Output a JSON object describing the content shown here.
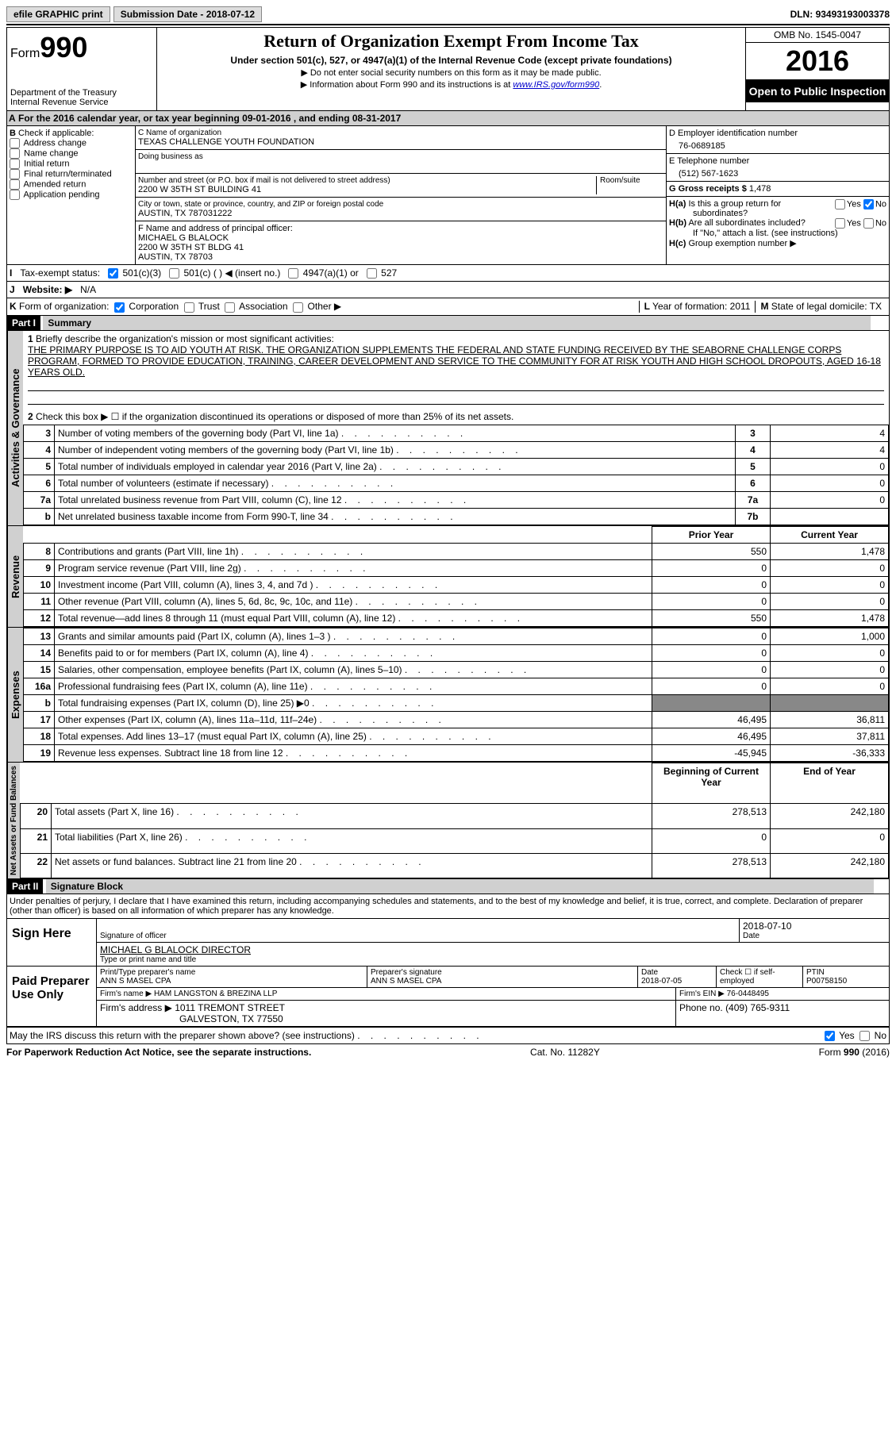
{
  "topbar": {
    "efile_btn": "efile GRAPHIC print",
    "submission_label": "Submission Date - ",
    "submission_date": "2018-07-12",
    "dln_label": "DLN: ",
    "dln": "93493193003378"
  },
  "header": {
    "form_word": "Form",
    "form_num": "990",
    "dept1": "Department of the Treasury",
    "dept2": "Internal Revenue Service",
    "title": "Return of Organization Exempt From Income Tax",
    "subtitle": "Under section 501(c), 527, or 4947(a)(1) of the Internal Revenue Code (except private foundations)",
    "line1": "▶ Do not enter social security numbers on this form as it may be made public.",
    "line2_pre": "▶ Information about Form 990 and its instructions is at ",
    "line2_link": "www.IRS.gov/form990",
    "omb": "OMB No. 1545-0047",
    "year": "2016",
    "inspection": "Open to Public Inspection"
  },
  "section_a": {
    "label": "A",
    "text_pre": "For the 2016 calendar year, or tax year beginning ",
    "begin": "09-01-2016",
    "mid": "   , and ending ",
    "end": "08-31-2017"
  },
  "col_b": {
    "header_b": "B",
    "header_text": "Check if applicable:",
    "items": [
      "Address change",
      "Name change",
      "Initial return",
      "Final return/terminated",
      "Amended return",
      "Application pending"
    ]
  },
  "col_c": {
    "org_label": "C Name of organization",
    "org_name": "TEXAS CHALLENGE YOUTH FOUNDATION",
    "dba_label": "Doing business as",
    "addr_label": "Number and street (or P.O. box if mail is not delivered to street address)",
    "room_label": "Room/suite",
    "addr": "2200 W 35TH ST BUILDING 41",
    "city_label": "City or town, state or province, country, and ZIP or foreign postal code",
    "city": "AUSTIN, TX  787031222",
    "f_label": "F  Name and address of principal officer:",
    "f_name": "MICHAEL G BLALOCK",
    "f_addr1": "2200 W 35TH ST BLDG 41",
    "f_addr2": "AUSTIN, TX  78703"
  },
  "col_d": {
    "ein_label": "D Employer identification number",
    "ein": "76-0689185",
    "phone_label": "E Telephone number",
    "phone": "(512) 567-1623",
    "gross_label": "G Gross receipts $ ",
    "gross": "1,478",
    "ha_label": "H(a)",
    "ha_text": " Is this a group return for",
    "ha_text2": "subordinates?",
    "hb_label": "H(b)",
    "hb_text": " Are all subordinates included?",
    "hb_text2": "If \"No,\" attach a list. (see instructions)",
    "hc_label": "H(c)",
    "hc_text": " Group exemption number ▶",
    "yes": "Yes",
    "no": "No"
  },
  "row_i": {
    "label": "I",
    "text": "Tax-exempt status:",
    "o1": "501(c)(3)",
    "o2": "501(c) (   ) ◀ (insert no.)",
    "o3": "4947(a)(1) or",
    "o4": "527"
  },
  "row_j": {
    "label": "J",
    "text": "Website: ▶",
    "val": "N/A"
  },
  "row_k": {
    "label": "K",
    "text": "Form of organization:",
    "o1": "Corporation",
    "o2": "Trust",
    "o3": "Association",
    "o4": "Other ▶",
    "l_label": "L",
    "l_text": " Year of formation: ",
    "l_val": "2011",
    "m_label": "M",
    "m_text": " State of legal domicile: ",
    "m_val": "TX"
  },
  "part1": {
    "header": "Part I",
    "title": "Summary",
    "side_gov": "Activities & Governance",
    "side_rev": "Revenue",
    "side_exp": "Expenses",
    "side_net": "Net Assets or Fund Balances",
    "l1_label": "1",
    "l1_text": "Briefly describe the organization's mission or most significant activities:",
    "mission": "THE PRIMARY PURPOSE IS TO AID YOUTH AT RISK. THE ORGANIZATION SUPPLEMENTS THE FEDERAL AND STATE FUNDING RECEIVED BY THE SEABORNE CHALLENGE CORPS PROGRAM, FORMED TO PROVIDE EDUCATION, TRAINING, CAREER DEVELOPMENT AND SERVICE TO THE COMMUNITY FOR AT RISK YOUTH AND HIGH SCHOOL DROPOUTS, AGED 16-18 YEARS OLD.",
    "l2_label": "2",
    "l2_text": "Check this box ▶ ☐  if the organization discontinued its operations or disposed of more than 25% of its net assets.",
    "rows_gov": [
      {
        "n": "3",
        "t": "Number of voting members of the governing body (Part VI, line 1a)",
        "c": "3",
        "v": "4"
      },
      {
        "n": "4",
        "t": "Number of independent voting members of the governing body (Part VI, line 1b)",
        "c": "4",
        "v": "4"
      },
      {
        "n": "5",
        "t": "Total number of individuals employed in calendar year 2016 (Part V, line 2a)",
        "c": "5",
        "v": "0"
      },
      {
        "n": "6",
        "t": "Total number of volunteers (estimate if necessary)",
        "c": "6",
        "v": "0"
      },
      {
        "n": "7a",
        "t": "Total unrelated business revenue from Part VIII, column (C), line 12",
        "c": "7a",
        "v": "0"
      },
      {
        "n": "b",
        "t": "Net unrelated business taxable income from Form 990-T, line 34",
        "c": "7b",
        "v": ""
      }
    ],
    "prior_hdr": "Prior Year",
    "curr_hdr": "Current Year",
    "rows_rev": [
      {
        "n": "8",
        "t": "Contributions and grants (Part VIII, line 1h)",
        "p": "550",
        "c": "1,478"
      },
      {
        "n": "9",
        "t": "Program service revenue (Part VIII, line 2g)",
        "p": "0",
        "c": "0"
      },
      {
        "n": "10",
        "t": "Investment income (Part VIII, column (A), lines 3, 4, and 7d )",
        "p": "0",
        "c": "0"
      },
      {
        "n": "11",
        "t": "Other revenue (Part VIII, column (A), lines 5, 6d, 8c, 9c, 10c, and 11e)",
        "p": "0",
        "c": "0"
      },
      {
        "n": "12",
        "t": "Total revenue—add lines 8 through 11 (must equal Part VIII, column (A), line 12)",
        "p": "550",
        "c": "1,478"
      }
    ],
    "rows_exp": [
      {
        "n": "13",
        "t": "Grants and similar amounts paid (Part IX, column (A), lines 1–3 )",
        "p": "0",
        "c": "1,000"
      },
      {
        "n": "14",
        "t": "Benefits paid to or for members (Part IX, column (A), line 4)",
        "p": "0",
        "c": "0"
      },
      {
        "n": "15",
        "t": "Salaries, other compensation, employee benefits (Part IX, column (A), lines 5–10)",
        "p": "0",
        "c": "0"
      },
      {
        "n": "16a",
        "t": "Professional fundraising fees (Part IX, column (A), line 11e)",
        "p": "0",
        "c": "0"
      },
      {
        "n": "b",
        "t": "Total fundraising expenses (Part IX, column (D), line 25) ▶0",
        "p": "SHADE",
        "c": "SHADE"
      },
      {
        "n": "17",
        "t": "Other expenses (Part IX, column (A), lines 11a–11d, 11f–24e)",
        "p": "46,495",
        "c": "36,811"
      },
      {
        "n": "18",
        "t": "Total expenses. Add lines 13–17 (must equal Part IX, column (A), line 25)",
        "p": "46,495",
        "c": "37,811"
      },
      {
        "n": "19",
        "t": "Revenue less expenses. Subtract line 18 from line 12",
        "p": "-45,945",
        "c": "-36,333"
      }
    ],
    "begin_hdr": "Beginning of Current Year",
    "end_hdr": "End of Year",
    "rows_net": [
      {
        "n": "20",
        "t": "Total assets (Part X, line 16)",
        "p": "278,513",
        "c": "242,180"
      },
      {
        "n": "21",
        "t": "Total liabilities (Part X, line 26)",
        "p": "0",
        "c": "0"
      },
      {
        "n": "22",
        "t": "Net assets or fund balances. Subtract line 21 from line 20",
        "p": "278,513",
        "c": "242,180"
      }
    ]
  },
  "part2": {
    "header": "Part II",
    "title": "Signature Block",
    "perjury": "Under penalties of perjury, I declare that I have examined this return, including accompanying schedules and statements, and to the best of my knowledge and belief, it is true, correct, and complete. Declaration of preparer (other than officer) is based on all information of which preparer has any knowledge.",
    "sign_here": "Sign Here",
    "sig_officer_label": "Signature of officer",
    "sig_date": "2018-07-10",
    "date_label": "Date",
    "officer_name": "MICHAEL G BLALOCK  DIRECTOR",
    "name_label": "Type or print name and title",
    "paid": "Paid Preparer Use Only",
    "prep_name_label": "Print/Type preparer's name",
    "prep_name": "ANN S MASEL CPA",
    "prep_sig_label": "Preparer's signature",
    "prep_sig": "ANN S MASEL CPA",
    "prep_date_label": "Date",
    "prep_date": "2018-07-05",
    "check_label": "Check ☐ if self-employed",
    "ptin_label": "PTIN",
    "ptin": "P00758150",
    "firm_name_label": "Firm's name     ▶ ",
    "firm_name": "HAM LANGSTON & BREZINA LLP",
    "firm_ein_label": "Firm's EIN ▶ ",
    "firm_ein": "76-0448495",
    "firm_addr_label": "Firm's address ▶ ",
    "firm_addr1": "1011 TREMONT STREET",
    "firm_addr2": "GALVESTON, TX  77550",
    "phone_label": "Phone no. ",
    "phone": "(409) 765-9311",
    "discuss": "May the IRS discuss this return with the preparer shown above? (see instructions)",
    "yes": "Yes",
    "no": "No"
  },
  "footer": {
    "paperwork": "For Paperwork Reduction Act Notice, see the separate instructions.",
    "cat": "Cat. No. 11282Y",
    "form": "Form 990 (2016)"
  }
}
